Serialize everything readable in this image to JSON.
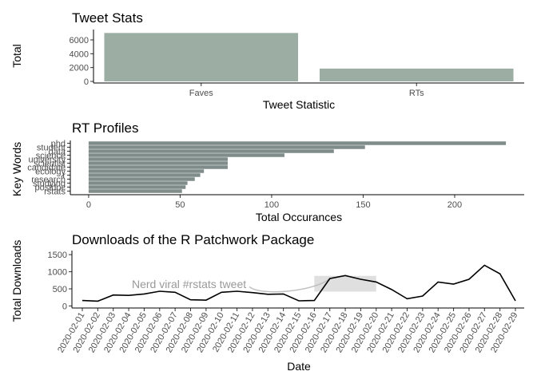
{
  "chart_data": [
    {
      "type": "bar",
      "title": "Tweet Stats",
      "xlabel": "Tweet Statistic",
      "ylabel": "Total",
      "categories": [
        "Faves",
        "RTs"
      ],
      "values": [
        7000,
        1850
      ],
      "ylim": [
        0,
        7500
      ],
      "yticks": [
        "0",
        "2000",
        "4000",
        "6000"
      ],
      "bar_color": "#9cada4",
      "grid": false
    },
    {
      "type": "bar",
      "orientation": "horizontal",
      "title": "RT Profiles",
      "xlabel": "Total Occurances",
      "ylabel": "Key Words",
      "categories": [
        "phd",
        "student",
        "data",
        "science",
        "university",
        "scientist",
        "candidate",
        "ecology",
        "r",
        "research",
        "studying",
        "postdoc",
        "rstats"
      ],
      "values": [
        228,
        151,
        134,
        107,
        76,
        76,
        76,
        63,
        61,
        58,
        54,
        53,
        51
      ],
      "xlim": [
        -10,
        238
      ],
      "xticks": [
        "0",
        "50",
        "100",
        "150",
        "200"
      ],
      "bar_color": "#7f8c8a",
      "grid": false
    },
    {
      "type": "line",
      "title": "Downloads of the R Patchwork Package",
      "xlabel": "Date",
      "ylabel": "Total Downloads",
      "x": [
        "2020-02-01",
        "2020-02-02",
        "2020-02-03",
        "2020-02-04",
        "2020-02-05",
        "2020-02-06",
        "2020-02-07",
        "2020-02-08",
        "2020-02-09",
        "2020-02-10",
        "2020-02-11",
        "2020-02-12",
        "2020-02-13",
        "2020-02-14",
        "2020-02-15",
        "2020-02-16",
        "2020-02-17",
        "2020-02-18",
        "2020-02-19",
        "2020-02-20",
        "2020-02-21",
        "2020-02-22",
        "2020-02-23",
        "2020-02-24",
        "2020-02-25",
        "2020-02-26",
        "2020-02-27",
        "2020-02-28",
        "2020-02-29"
      ],
      "values": [
        160,
        140,
        320,
        310,
        350,
        430,
        400,
        180,
        170,
        400,
        430,
        390,
        340,
        350,
        150,
        160,
        800,
        890,
        780,
        700,
        480,
        210,
        290,
        700,
        640,
        780,
        1190,
        940,
        150
      ],
      "ylim": [
        -60,
        1620
      ],
      "yticks": [
        "0",
        "500",
        "1000",
        "1500"
      ],
      "highlight": {
        "from": "2020-02-16",
        "to": "2020-02-20",
        "ymin": 420,
        "ymax": 880
      },
      "annotation": {
        "text": "Nerd viral #rstats tweet"
      },
      "line_color": "#000000",
      "grid": false
    }
  ]
}
